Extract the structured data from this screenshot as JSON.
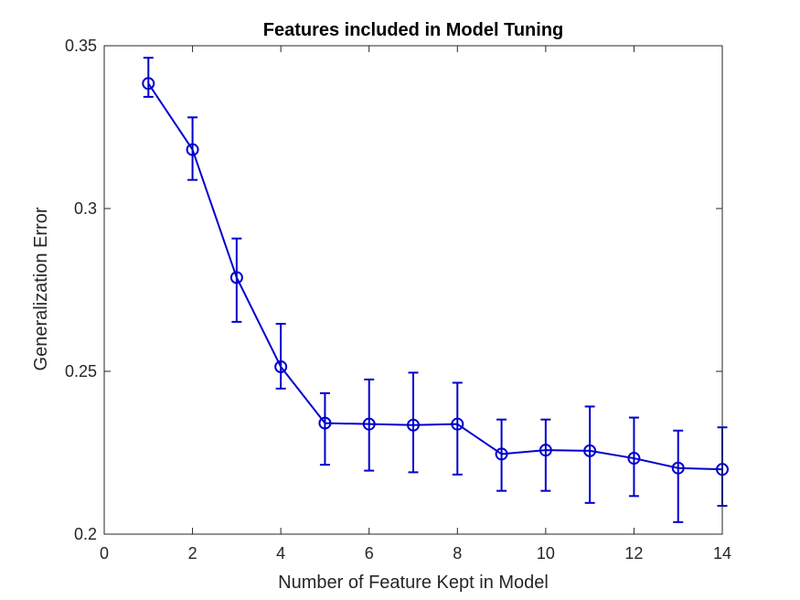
{
  "chart_data": {
    "type": "line",
    "title": "Features included in Model Tuning",
    "xlabel": "Number of Feature Kept in Model",
    "ylabel": "Generalization Error",
    "xlim": [
      0,
      14
    ],
    "ylim": [
      0.2,
      0.35
    ],
    "xticks": [
      0,
      2,
      4,
      6,
      8,
      10,
      12,
      14
    ],
    "xtick_labels": [
      "0",
      "2",
      "4",
      "6",
      "8",
      "10",
      "12",
      "14"
    ],
    "yticks": [
      0.2,
      0.25,
      0.3,
      0.35
    ],
    "ytick_labels": [
      "0.2",
      "0.25",
      "0.3",
      "0.35"
    ],
    "grid": false,
    "box": true,
    "marker": "circle-open",
    "error_bars": true,
    "series": [
      {
        "color": "#0000cc",
        "x": [
          1,
          2,
          3,
          4,
          5,
          6,
          7,
          8,
          9,
          10,
          11,
          12,
          13,
          14
        ],
        "y": [
          0.3384,
          0.3181,
          0.2788,
          0.2514,
          0.2341,
          0.2338,
          0.2335,
          0.2338,
          0.2246,
          0.2258,
          0.2256,
          0.2233,
          0.2203,
          0.2199
        ],
        "err_low": [
          0.3343,
          0.3088,
          0.2652,
          0.2447,
          0.2213,
          0.2195,
          0.219,
          0.2183,
          0.2133,
          0.2133,
          0.2096,
          0.2117,
          0.2037,
          0.2087
        ],
        "err_high": [
          0.3463,
          0.328,
          0.2908,
          0.2646,
          0.2433,
          0.2475,
          0.2496,
          0.2465,
          0.2352,
          0.2352,
          0.2392,
          0.2358,
          0.2318,
          0.2328
        ]
      }
    ]
  }
}
